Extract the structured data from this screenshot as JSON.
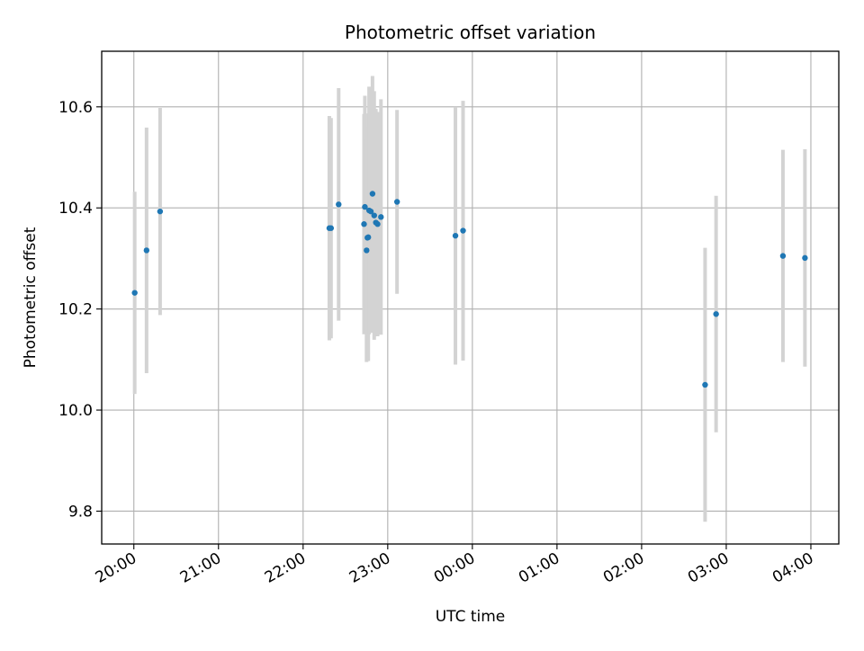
{
  "chart_data": {
    "type": "scatter",
    "title": "Photometric offset variation",
    "xlabel": "UTC time",
    "ylabel": "Photometric offset",
    "x_unit": "hours after 20:00 UTC",
    "xlim": [
      -0.38,
      8.33
    ],
    "ylim": [
      9.735,
      10.71
    ],
    "grid": true,
    "colors": {
      "points": "#1f77b4",
      "errorbars": "#d3d3d3"
    },
    "x_ticks": [
      {
        "value": 0,
        "label": "20:00"
      },
      {
        "value": 1,
        "label": "21:00"
      },
      {
        "value": 2,
        "label": "22:00"
      },
      {
        "value": 3,
        "label": "23:00"
      },
      {
        "value": 4,
        "label": "00:00"
      },
      {
        "value": 5,
        "label": "01:00"
      },
      {
        "value": 6,
        "label": "02:00"
      },
      {
        "value": 7,
        "label": "03:00"
      },
      {
        "value": 8,
        "label": "04:00"
      }
    ],
    "y_ticks": [
      {
        "value": 9.8,
        "label": "9.8"
      },
      {
        "value": 10.0,
        "label": "10.0"
      },
      {
        "value": 10.2,
        "label": "10.2"
      },
      {
        "value": 10.4,
        "label": "10.4"
      },
      {
        "value": 10.6,
        "label": "10.6"
      }
    ],
    "points": [
      {
        "x": 0.01,
        "y": 10.232,
        "err": 0.2
      },
      {
        "x": 0.15,
        "y": 10.316,
        "err": 0.243
      },
      {
        "x": 0.31,
        "y": 10.393,
        "err": 0.205
      },
      {
        "x": 2.31,
        "y": 10.36,
        "err": 0.222
      },
      {
        "x": 2.33,
        "y": 10.36,
        "err": 0.218
      },
      {
        "x": 2.42,
        "y": 10.407,
        "err": 0.23
      },
      {
        "x": 2.72,
        "y": 10.368,
        "err": 0.218
      },
      {
        "x": 2.73,
        "y": 10.402,
        "err": 0.22
      },
      {
        "x": 2.75,
        "y": 10.316,
        "err": 0.221
      },
      {
        "x": 2.76,
        "y": 10.341,
        "err": 0.22
      },
      {
        "x": 2.77,
        "y": 10.342,
        "err": 0.245
      },
      {
        "x": 2.78,
        "y": 10.395,
        "err": 0.245
      },
      {
        "x": 2.8,
        "y": 10.393,
        "err": 0.24
      },
      {
        "x": 2.82,
        "y": 10.428,
        "err": 0.233
      },
      {
        "x": 2.84,
        "y": 10.385,
        "err": 0.246
      },
      {
        "x": 2.86,
        "y": 10.371,
        "err": 0.225
      },
      {
        "x": 2.88,
        "y": 10.368,
        "err": 0.222
      },
      {
        "x": 2.92,
        "y": 10.382,
        "err": 0.233
      },
      {
        "x": 3.11,
        "y": 10.412,
        "err": 0.182
      },
      {
        "x": 3.8,
        "y": 10.345,
        "err": 0.255
      },
      {
        "x": 3.89,
        "y": 10.355,
        "err": 0.257
      },
      {
        "x": 6.75,
        "y": 10.05,
        "err": 0.271
      },
      {
        "x": 6.88,
        "y": 10.19,
        "err": 0.234
      },
      {
        "x": 7.67,
        "y": 10.305,
        "err": 0.21
      },
      {
        "x": 7.93,
        "y": 10.301,
        "err": 0.215
      }
    ]
  }
}
